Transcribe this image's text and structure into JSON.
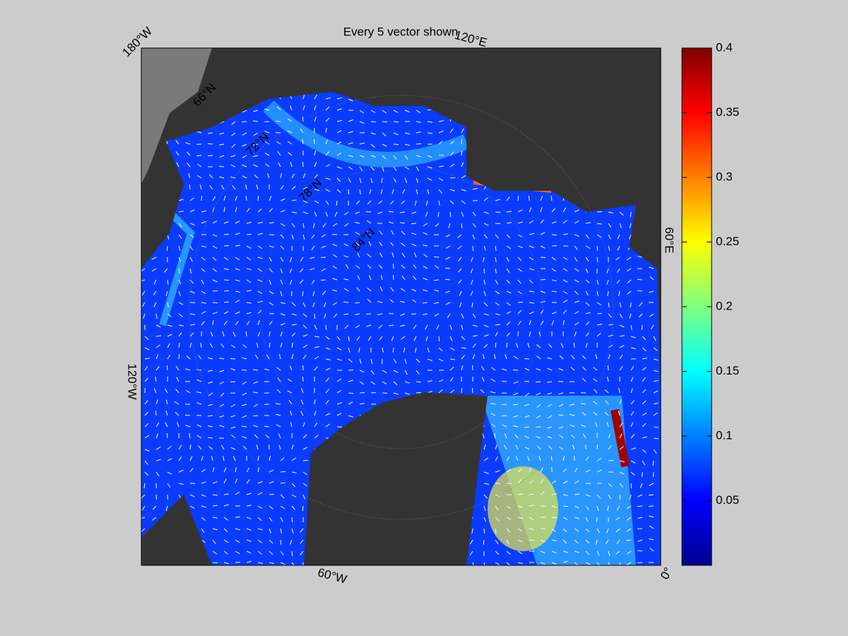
{
  "map": {
    "title": "Every 5 vector shown",
    "lon_labels": [
      "180°W",
      "120°E",
      "60°E",
      "0°",
      "60°W",
      "120°W"
    ],
    "lat_labels": [
      "66°N",
      "72°N",
      "78°N",
      "84°N"
    ]
  },
  "colorbar": {
    "lim": [
      0,
      0.4
    ],
    "ticks": [
      0.05,
      0.1,
      0.15,
      0.2,
      0.25,
      0.3,
      0.35,
      0.4
    ]
  }
}
